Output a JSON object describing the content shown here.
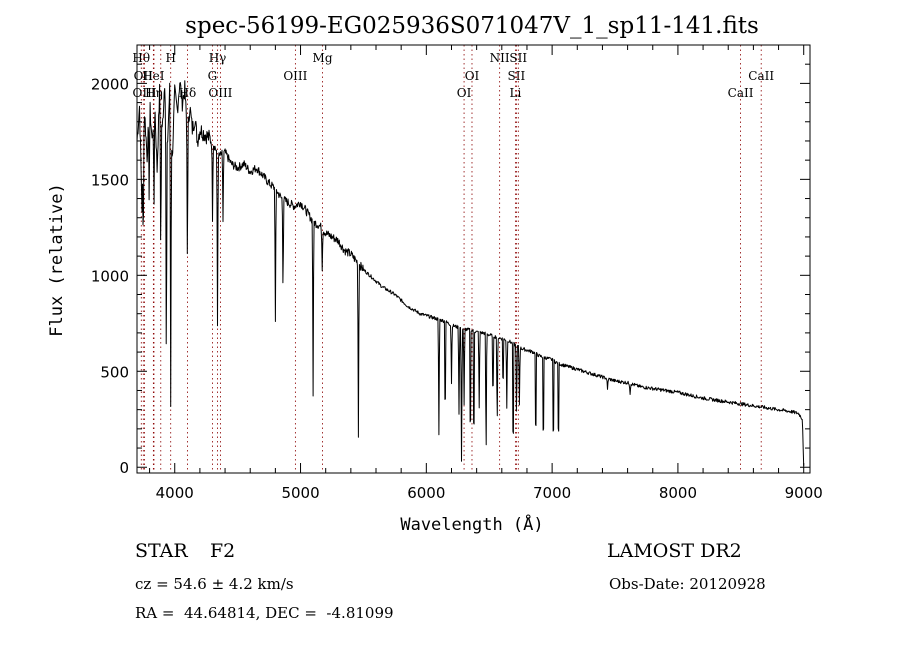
{
  "chart_data": {
    "type": "line",
    "title": "spec-56199-EG025936S071047V_1_sp11-141.fits",
    "xlabel": "Wavelength (Å)",
    "ylabel": "Flux (relative)",
    "xlim": [
      3700,
      9050
    ],
    "ylim": [
      -30,
      2200
    ],
    "x_ticks": [
      4000,
      5000,
      6000,
      7000,
      8000,
      9000
    ],
    "x_tick_labels": [
      "4000",
      "5000",
      "6000",
      "7000",
      "8000",
      "9000"
    ],
    "y_ticks": [
      0,
      500,
      1000,
      1500,
      2000
    ],
    "y_tick_labels": [
      "0",
      "500",
      "1000",
      "1500",
      "2000"
    ],
    "grid": false,
    "series": [
      {
        "x": [
          3700,
          3720,
          3740,
          3760,
          3780,
          3800,
          3820,
          3840,
          3860,
          3880,
          3900,
          3920,
          3940,
          3960,
          3980,
          4000,
          4020,
          4040,
          4060,
          4080,
          4100,
          4120,
          4140,
          4160,
          4180,
          4200,
          4250,
          4300,
          4350,
          4400,
          4450,
          4500,
          4550,
          4600,
          4650,
          4700,
          4750,
          4800,
          4850,
          4900,
          4950,
          5000,
          5050,
          5100,
          5150,
          5200,
          5250,
          5300,
          5350,
          5400,
          5450,
          5500,
          5550,
          5600,
          5650,
          5700,
          5750,
          5800,
          5850,
          5900,
          5950,
          6000,
          6050,
          6100,
          6150,
          6200,
          6250,
          6300,
          6350,
          6400,
          6450,
          6500,
          6550,
          6600,
          6650,
          6700,
          6750,
          6800,
          6850,
          6900,
          6950,
          7000,
          7050,
          7100,
          7200,
          7300,
          7400,
          7500,
          7600,
          7700,
          7800,
          7900,
          8000,
          8100,
          8200,
          8300,
          8400,
          8500,
          8600,
          8700,
          8800,
          8900,
          8960,
          8990,
          9000
        ],
        "y": [
          1700,
          1880,
          1350,
          1850,
          1620,
          1900,
          1700,
          1920,
          1550,
          1960,
          1750,
          2010,
          1650,
          1970,
          1600,
          1950,
          1860,
          2010,
          1900,
          1970,
          1730,
          1880,
          1760,
          1820,
          1700,
          1760,
          1730,
          1700,
          1620,
          1640,
          1580,
          1560,
          1580,
          1540,
          1560,
          1520,
          1480,
          1450,
          1400,
          1380,
          1360,
          1380,
          1330,
          1280,
          1260,
          1220,
          1200,
          1180,
          1130,
          1110,
          1070,
          1030,
          1000,
          970,
          940,
          920,
          900,
          870,
          840,
          820,
          800,
          790,
          780,
          770,
          760,
          740,
          730,
          720,
          715,
          705,
          700,
          690,
          680,
          670,
          660,
          640,
          620,
          610,
          600,
          580,
          570,
          560,
          540,
          530,
          510,
          490,
          470,
          450,
          440,
          420,
          410,
          400,
          390,
          375,
          360,
          350,
          340,
          330,
          320,
          310,
          300,
          290,
          280,
          250,
          0
        ]
      }
    ],
    "absorption_lines": [
      {
        "x": 3750,
        "depth": 450
      },
      {
        "x": 3797,
        "depth": 500
      },
      {
        "x": 3835,
        "depth": 600
      },
      {
        "x": 3889,
        "depth": 800
      },
      {
        "x": 3933,
        "depth": 1400
      },
      {
        "x": 3968,
        "depth": 1500
      },
      {
        "x": 4101,
        "depth": 700
      },
      {
        "x": 4300,
        "depth": 400
      },
      {
        "x": 4340,
        "depth": 900
      },
      {
        "x": 4384,
        "depth": 350
      },
      {
        "x": 4800,
        "depth": 700
      },
      {
        "x": 4861,
        "depth": 500
      },
      {
        "x": 5100,
        "depth": 900
      },
      {
        "x": 5172,
        "depth": 200
      },
      {
        "x": 5460,
        "depth": 900
      },
      {
        "x": 6100,
        "depth": 600
      },
      {
        "x": 6150,
        "depth": 600
      },
      {
        "x": 6200,
        "depth": 300
      },
      {
        "x": 6260,
        "depth": 450
      },
      {
        "x": 6280,
        "depth": 700
      },
      {
        "x": 6300,
        "depth": 400
      },
      {
        "x": 6350,
        "depth": 710
      },
      {
        "x": 6378,
        "depth": 720
      },
      {
        "x": 6420,
        "depth": 400
      },
      {
        "x": 6475,
        "depth": 700
      },
      {
        "x": 6530,
        "depth": 400
      },
      {
        "x": 6563,
        "depth": 500
      },
      {
        "x": 6610,
        "depth": 300
      },
      {
        "x": 6640,
        "depth": 350
      },
      {
        "x": 6690,
        "depth": 700
      },
      {
        "x": 6717,
        "depth": 400
      },
      {
        "x": 6740,
        "depth": 300
      },
      {
        "x": 6870,
        "depth": 560
      },
      {
        "x": 6930,
        "depth": 570
      },
      {
        "x": 7010,
        "depth": 540
      },
      {
        "x": 7050,
        "depth": 520
      },
      {
        "x": 7440,
        "depth": 60
      },
      {
        "x": 7620,
        "depth": 50
      }
    ],
    "line_markers": [
      {
        "x": 3734,
        "label": "Hθ",
        "row": 0
      },
      {
        "x": 3750,
        "label": "OII",
        "row": 1
      },
      {
        "x": 3760,
        "label": "OIII",
        "row": 2
      },
      {
        "x": 3830,
        "label": "HeI",
        "row": 1
      },
      {
        "x": 3835,
        "label": "Hη",
        "row": 2
      },
      {
        "x": 3889,
        "label": "",
        "row": -1
      },
      {
        "x": 3968,
        "label": "H",
        "row": 0
      },
      {
        "x": 4101,
        "label": "Hδ",
        "row": 2
      },
      {
        "x": 4300,
        "label": "G",
        "row": 1
      },
      {
        "x": 4340,
        "label": "Hγ",
        "row": 0
      },
      {
        "x": 4363,
        "label": "OIII",
        "row": 2
      },
      {
        "x": 4959,
        "label": "OIII",
        "row": 1
      },
      {
        "x": 5175,
        "label": "Mg",
        "row": 0
      },
      {
        "x": 6300,
        "label": "OI",
        "row": 2
      },
      {
        "x": 6363,
        "label": "OI",
        "row": 1
      },
      {
        "x": 6583,
        "label": "NII",
        "row": 0
      },
      {
        "x": 6716,
        "label": "SII",
        "row": 1
      },
      {
        "x": 6708,
        "label": "Li",
        "row": 2
      },
      {
        "x": 6731,
        "label": "SII",
        "row": 0
      },
      {
        "x": 8498,
        "label": "CaII",
        "row": 2
      },
      {
        "x": 8662,
        "label": "CaII",
        "row": 1
      }
    ]
  },
  "info": {
    "object_class": "STAR",
    "subclass": "F2",
    "survey": "LAMOST DR2",
    "redshift": "cz = 54.6 ± 4.2 km/s",
    "obs_date": "Obs-Date: 20120928",
    "coordinates": "RA =  44.64814, DEC =  -4.81099"
  }
}
